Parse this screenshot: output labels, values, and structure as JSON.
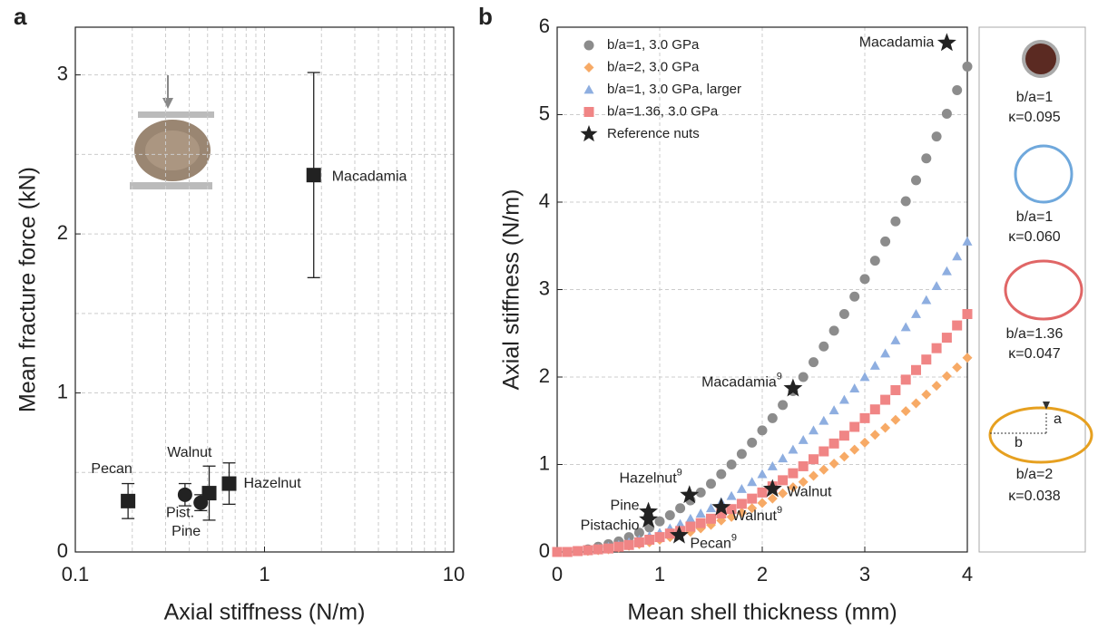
{
  "chart_data": [
    {
      "type": "errorbar",
      "panel": "a",
      "xlabel": "Axial stiffness (N/m)",
      "ylabel": "Mean fracture force (kN)",
      "xscale": "log",
      "xlim": [
        0.1,
        10
      ],
      "ylim": [
        0,
        3.3
      ],
      "xticks": [
        0.1,
        1,
        10
      ],
      "yticks": [
        0,
        1,
        2,
        3
      ],
      "xminorticks": [
        0.2,
        0.3,
        0.4,
        0.5,
        0.6,
        0.7,
        0.8,
        0.9,
        2,
        3,
        4,
        5,
        6,
        7,
        8,
        9
      ],
      "yminorticks": [
        0.5,
        1.5,
        2.5
      ],
      "grid": true,
      "color": "#222222",
      "labels": [
        "Pecan",
        "Walnut",
        "Pine",
        "Pist.",
        "Hazelnut",
        "Macadamia"
      ],
      "markers": [
        "square",
        "circle",
        "circle",
        "square",
        "square",
        "square"
      ],
      "x": [
        0.19,
        0.38,
        0.46,
        0.51,
        0.65,
        1.82
      ],
      "values": [
        0.32,
        0.36,
        0.31,
        0.37,
        0.43,
        2.37
      ],
      "errors": [
        0.11,
        0.07,
        0.05,
        0.17,
        0.13,
        0.645
      ]
    },
    {
      "type": "scatter",
      "panel": "b",
      "xlabel": "Mean shell thickness (mm)",
      "ylabel": "Axial stiffness (N/m)",
      "xlim": [
        0,
        4
      ],
      "ylim": [
        0,
        6
      ],
      "xticks": [
        0,
        1,
        2,
        3,
        4
      ],
      "yticks": [
        0,
        1,
        2,
        3,
        4,
        5,
        6
      ],
      "grid": true,
      "legend": "top-left",
      "x": [
        0,
        0.1,
        0.2,
        0.3,
        0.4,
        0.5,
        0.6,
        0.7,
        0.8,
        0.9,
        1,
        1.1,
        1.2,
        1.3,
        1.4,
        1.5,
        1.6,
        1.7,
        1.8,
        1.9,
        2,
        2.1,
        2.2,
        2.3,
        2.4,
        2.5,
        2.6,
        2.7,
        2.8,
        2.9,
        3,
        3.1,
        3.2,
        3.3,
        3.4,
        3.5,
        3.6,
        3.7,
        3.8,
        3.9,
        4
      ],
      "series": [
        {
          "name": "b/a=1, 3.0 GPa",
          "color": "#8c8c8c",
          "marker": "circle",
          "values": [
            0,
            0,
            0.01,
            0.03,
            0.06,
            0.09,
            0.12,
            0.17,
            0.22,
            0.28,
            0.35,
            0.42,
            0.5,
            0.59,
            0.68,
            0.78,
            0.89,
            1,
            1.12,
            1.25,
            1.39,
            1.53,
            1.68,
            1.84,
            2,
            2.17,
            2.35,
            2.53,
            2.72,
            2.92,
            3.12,
            3.33,
            3.55,
            3.78,
            4.01,
            4.25,
            4.5,
            4.75,
            5.01,
            5.28,
            5.55
          ]
        },
        {
          "name": "b/a=2, 3.0 GPa",
          "color": "#f7aa66",
          "marker": "diamond",
          "values": [
            0,
            0,
            0.01,
            0.01,
            0.02,
            0.03,
            0.05,
            0.07,
            0.09,
            0.11,
            0.14,
            0.17,
            0.2,
            0.23,
            0.27,
            0.31,
            0.36,
            0.4,
            0.45,
            0.5,
            0.56,
            0.61,
            0.67,
            0.74,
            0.8,
            0.87,
            0.94,
            1.01,
            1.09,
            1.17,
            1.25,
            1.34,
            1.42,
            1.51,
            1.61,
            1.7,
            1.8,
            1.9,
            2.01,
            2.11,
            2.22
          ]
        },
        {
          "name": "b/a=1, 3.0 GPa, larger",
          "color": "#8eaee0",
          "marker": "triangle",
          "values": [
            0,
            0,
            0.01,
            0.02,
            0.04,
            0.06,
            0.08,
            0.11,
            0.14,
            0.18,
            0.22,
            0.27,
            0.32,
            0.38,
            0.44,
            0.5,
            0.57,
            0.64,
            0.72,
            0.8,
            0.89,
            0.98,
            1.07,
            1.17,
            1.28,
            1.39,
            1.5,
            1.62,
            1.74,
            1.87,
            2,
            2.13,
            2.27,
            2.42,
            2.57,
            2.72,
            2.88,
            3.04,
            3.21,
            3.38,
            3.55
          ]
        },
        {
          "name": "b/a=1.36, 3.0 GPa",
          "color": "#f08585",
          "marker": "square",
          "values": [
            0,
            0,
            0.01,
            0.02,
            0.03,
            0.04,
            0.06,
            0.08,
            0.11,
            0.14,
            0.17,
            0.21,
            0.24,
            0.29,
            0.33,
            0.38,
            0.44,
            0.49,
            0.55,
            0.61,
            0.68,
            0.75,
            0.82,
            0.9,
            0.98,
            1.06,
            1.15,
            1.24,
            1.33,
            1.43,
            1.53,
            1.63,
            1.74,
            1.85,
            1.97,
            2.08,
            2.2,
            2.33,
            2.45,
            2.59,
            2.72
          ]
        }
      ],
      "reference": {
        "name": "Reference nuts",
        "color": "#222222",
        "marker": "star",
        "points": [
          {
            "label": "Macadamia",
            "x": 3.8,
            "y": 5.82
          },
          {
            "label": "Macadamia",
            "ref": "9",
            "x": 2.3,
            "y": 1.87
          },
          {
            "label": "Hazelnut",
            "ref": "9",
            "x": 1.29,
            "y": 0.65
          },
          {
            "label": "Pine",
            "x": 0.89,
            "y": 0.46
          },
          {
            "label": "Pistachio",
            "x": 0.89,
            "y": 0.37
          },
          {
            "label": "Walnut",
            "ref": "9",
            "x": 1.6,
            "y": 0.51
          },
          {
            "label": "Walnut",
            "x": 2.1,
            "y": 0.72
          },
          {
            "label": "Pecan",
            "ref": "9",
            "x": 1.19,
            "y": 0.19
          }
        ]
      }
    }
  ],
  "side_panel": {
    "items": [
      {
        "ratio": "b/a=1",
        "kappa": "κ=0.095"
      },
      {
        "ratio": "b/a=1",
        "kappa": "κ=0.060"
      },
      {
        "ratio": "b/a=1.36",
        "kappa": "κ=0.047"
      },
      {
        "ratio": "b/a=2",
        "kappa": "κ=0.038"
      }
    ],
    "semi_axes": [
      "a",
      "b"
    ]
  }
}
